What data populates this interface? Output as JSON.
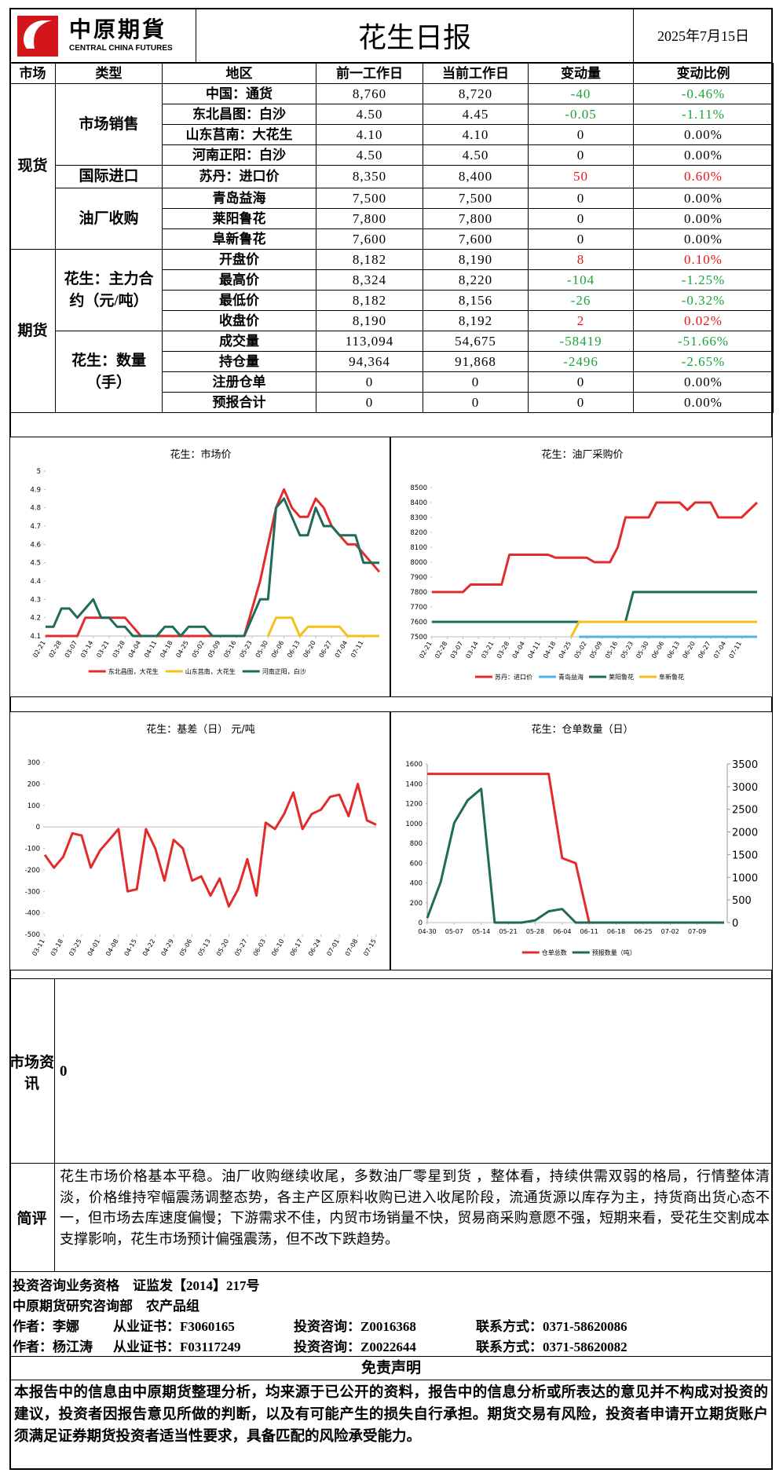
{
  "header": {
    "logo_cn": "中原期貨",
    "logo_en": "CENTRAL CHINA FUTURES",
    "title": "花生日报",
    "date": "2025年7月15日"
  },
  "table": {
    "columns": [
      "市场",
      "类型",
      "地区",
      "前一工作日",
      "当前工作日",
      "变动量",
      "变动比例"
    ],
    "markets": [
      {
        "name": "现货",
        "groups": [
          {
            "name": "市场销售",
            "rows": [
              [
                "中国：通货",
                "8,760",
                "8,720",
                "-40",
                "-0.46%"
              ],
              [
                "东北昌图：白沙",
                "4.50",
                "4.45",
                "-0.05",
                "-1.11%"
              ],
              [
                "山东莒南：大花生",
                "4.10",
                "4.10",
                "0",
                "0.00%"
              ],
              [
                "河南正阳：白沙",
                "4.50",
                "4.50",
                "0",
                "0.00%"
              ]
            ]
          },
          {
            "name": "国际进口",
            "rows": [
              [
                "苏丹：进口价",
                "8,350",
                "8,400",
                "50",
                "0.60%"
              ]
            ]
          },
          {
            "name": "油厂收购",
            "rows": [
              [
                "青岛益海",
                "7,500",
                "7,500",
                "0",
                "0.00%"
              ],
              [
                "莱阳鲁花",
                "7,800",
                "7,800",
                "0",
                "0.00%"
              ],
              [
                "阜新鲁花",
                "7,600",
                "7,600",
                "0",
                "0.00%"
              ]
            ]
          }
        ]
      },
      {
        "name": "期货",
        "groups": [
          {
            "name": "花生：主力合约（元/吨）",
            "rows": [
              [
                "开盘价",
                "8,182",
                "8,190",
                "8",
                "0.10%"
              ],
              [
                "最高价",
                "8,324",
                "8,220",
                "-104",
                "-1.25%"
              ],
              [
                "最低价",
                "8,182",
                "8,156",
                "-26",
                "-0.32%"
              ],
              [
                "收盘价",
                "8,190",
                "8,192",
                "2",
                "0.02%"
              ]
            ]
          },
          {
            "name": "花生：数量（手）",
            "rows": [
              [
                "成交量",
                "113,094",
                "54,675",
                "-58419",
                "-51.66%"
              ],
              [
                "持仓量",
                "94,364",
                "91,868",
                "-2496",
                "-2.65%"
              ],
              [
                "注册仓单",
                "0",
                "0",
                "0",
                "0.00%"
              ],
              [
                "预报合计",
                "0",
                "0",
                "0",
                "0.00%"
              ]
            ]
          }
        ]
      }
    ]
  },
  "chart_data": [
    {
      "type": "line",
      "title": "花生：市场价",
      "grid": false,
      "legend": "bottom",
      "categories": [
        "02-21",
        null,
        "02-28",
        null,
        "03-07",
        null,
        "03-14",
        null,
        "03-21",
        null,
        "03-28",
        null,
        "04-04",
        null,
        "04-11",
        null,
        "04-18",
        null,
        "04-25",
        null,
        "05-02",
        null,
        "05-09",
        null,
        "05-16",
        null,
        "05-23",
        null,
        "05-30",
        null,
        "06-06",
        null,
        "06-13",
        null,
        "06-20",
        null,
        "06-27",
        null,
        "07-04",
        null,
        "07-11",
        null,
        null
      ],
      "ylim": [
        4.1,
        5
      ],
      "yticks": [
        4.1,
        4.2,
        4.3,
        4.4,
        4.5,
        4.6,
        4.7,
        4.8,
        4.9,
        5
      ],
      "series": [
        {
          "name": "东北昌图，大花生",
          "color": "#e32b2b",
          "values": [
            4.1,
            4.1,
            4.1,
            4.1,
            4.1,
            4.2,
            4.2,
            4.2,
            4.2,
            4.2,
            4.2,
            4.15,
            4.1,
            4.1,
            4.1,
            4.1,
            4.1,
            4.1,
            4.1,
            4.1,
            4.1,
            4.1,
            4.1,
            4.1,
            4.1,
            4.1,
            4.25,
            4.4,
            4.6,
            4.8,
            4.9,
            4.8,
            4.75,
            4.75,
            4.85,
            4.8,
            4.7,
            4.65,
            4.6,
            4.6,
            4.55,
            4.5,
            4.45
          ]
        },
        {
          "name": "山东莒南，大花生",
          "color": "#f5c018",
          "values": [
            null,
            null,
            null,
            null,
            null,
            null,
            null,
            null,
            null,
            null,
            null,
            null,
            null,
            null,
            null,
            null,
            null,
            null,
            null,
            null,
            null,
            null,
            null,
            null,
            null,
            null,
            null,
            null,
            4.1,
            4.2,
            4.2,
            4.2,
            4.1,
            4.15,
            4.15,
            4.15,
            4.15,
            4.15,
            4.1,
            4.1,
            4.1,
            4.1,
            4.1
          ]
        },
        {
          "name": "河南正阳，白沙",
          "color": "#1e6b5a",
          "values": [
            4.15,
            4.15,
            4.25,
            4.25,
            4.2,
            4.25,
            4.3,
            4.2,
            4.2,
            4.15,
            4.15,
            4.1,
            4.1,
            4.1,
            4.1,
            4.15,
            4.15,
            4.1,
            4.15,
            4.15,
            4.15,
            4.1,
            4.1,
            4.1,
            4.1,
            4.1,
            4.2,
            4.3,
            4.3,
            4.8,
            4.85,
            4.75,
            4.65,
            4.65,
            4.8,
            4.7,
            4.7,
            4.65,
            4.65,
            4.65,
            4.5,
            4.5,
            4.5
          ]
        }
      ]
    },
    {
      "type": "line",
      "title": "花生：油厂采购价",
      "grid": false,
      "legend": "bottom",
      "categories": [
        "02-21",
        null,
        "02-28",
        null,
        "03-07",
        null,
        "03-14",
        null,
        "03-21",
        null,
        "03-28",
        null,
        "04-04",
        null,
        "04-11",
        null,
        "04-18",
        null,
        "04-25",
        null,
        "05-02",
        null,
        "05-09",
        null,
        "05-16",
        null,
        "05-23",
        null,
        "05-30",
        null,
        "06-06",
        null,
        "06-13",
        null,
        "06-20",
        null,
        "06-27",
        null,
        "07-04",
        null,
        "07-11",
        null,
        null
      ],
      "ylim": [
        7500,
        8500
      ],
      "yticks": [
        7500,
        7600,
        7700,
        7800,
        7900,
        8000,
        8100,
        8200,
        8300,
        8400,
        8500
      ],
      "series": [
        {
          "name": "苏丹：进口价",
          "color": "#e32b2b",
          "values": [
            7800,
            7800,
            7800,
            7800,
            7800,
            7850,
            7850,
            7850,
            7850,
            7850,
            8050,
            8050,
            8050,
            8050,
            8050,
            8050,
            8030,
            8030,
            8030,
            8030,
            8030,
            8000,
            8000,
            8000,
            8100,
            8300,
            8300,
            8300,
            8300,
            8400,
            8400,
            8400,
            8400,
            8350,
            8400,
            8400,
            8400,
            8300,
            8300,
            8300,
            8300,
            8350,
            8400
          ]
        },
        {
          "name": "青岛益海",
          "color": "#4fb3e8",
          "values": [
            null,
            null,
            null,
            null,
            null,
            null,
            null,
            null,
            null,
            null,
            null,
            null,
            null,
            null,
            null,
            null,
            null,
            null,
            null,
            7500,
            7500,
            7500,
            7500,
            7500,
            7500,
            7500,
            7500,
            7500,
            7500,
            7500,
            7500,
            7500,
            7500,
            7500,
            7500,
            7500,
            7500,
            7500,
            7500,
            7500,
            7500,
            7500,
            7500
          ]
        },
        {
          "name": "莱阳鲁花",
          "color": "#1e6b5a",
          "values": [
            7600,
            7600,
            7600,
            7600,
            7600,
            7600,
            7600,
            7600,
            7600,
            7600,
            7600,
            7600,
            7600,
            7600,
            7600,
            7600,
            7600,
            7600,
            7600,
            7600,
            7600,
            7600,
            7600,
            7600,
            7600,
            7600,
            7800,
            7800,
            7800,
            7800,
            7800,
            7800,
            7800,
            7800,
            7800,
            7800,
            7800,
            7800,
            7800,
            7800,
            7800,
            7800,
            7800
          ]
        },
        {
          "name": "阜新鲁花",
          "color": "#f5c018",
          "values": [
            null,
            null,
            null,
            null,
            null,
            null,
            null,
            null,
            null,
            null,
            null,
            null,
            null,
            null,
            null,
            null,
            null,
            null,
            7500,
            7600,
            7600,
            7600,
            7600,
            7600,
            7600,
            7600,
            7600,
            7600,
            7600,
            7600,
            7600,
            7600,
            7600,
            7600,
            7600,
            7600,
            7600,
            7600,
            7600,
            7600,
            7600,
            7600,
            7600
          ]
        }
      ]
    },
    {
      "type": "line",
      "title": "花生：基差（日） 元/吨",
      "grid": false,
      "categories": [
        "03-11",
        null,
        "03-18",
        null,
        "03-25",
        null,
        "04-01",
        null,
        "04-08",
        null,
        "04-15",
        null,
        "04-22",
        null,
        "04-29",
        null,
        "05-06",
        null,
        "05-13",
        null,
        "05-20",
        null,
        "05-27",
        null,
        "06-03",
        null,
        "06-10",
        null,
        "06-17",
        null,
        "06-24",
        null,
        "07-01",
        null,
        "07-08",
        null,
        "07-15"
      ],
      "ylim": [
        -500,
        300
      ],
      "yticks": [
        -500,
        -400,
        -300,
        -200,
        -100,
        0,
        100,
        200,
        300
      ],
      "series": [
        {
          "color": "#e32b2b",
          "values": [
            -130,
            -190,
            -140,
            -30,
            -40,
            -190,
            -110,
            -60,
            -10,
            -300,
            -290,
            -10,
            -100,
            -250,
            -60,
            -100,
            -250,
            -230,
            -320,
            -240,
            -370,
            -290,
            -150,
            -320,
            20,
            -10,
            60,
            160,
            -10,
            60,
            80,
            140,
            150,
            50,
            200,
            30,
            10
          ]
        }
      ]
    },
    {
      "type": "line",
      "title": "花生：仓单数量（日）",
      "grid": false,
      "legend": "bottom",
      "categories": [
        "04-30",
        null,
        "05-07",
        null,
        "05-14",
        null,
        "05-21",
        null,
        "05-28",
        null,
        "06-04",
        null,
        "06-11",
        null,
        "06-18",
        null,
        "06-25",
        null,
        "07-02",
        null,
        "07-09",
        null,
        null
      ],
      "ylim": [
        0,
        1600
      ],
      "yticks": [
        0,
        200,
        400,
        600,
        800,
        1000,
        1200,
        1400,
        1600
      ],
      "y2lim": [
        0,
        3500
      ],
      "y2ticks": [
        0,
        500,
        1000,
        1500,
        2000,
        2500,
        3000,
        3500
      ],
      "series": [
        {
          "name": "仓单总数",
          "color": "#e32b2b",
          "values": [
            1500,
            1500,
            1500,
            1500,
            1500,
            1500,
            1500,
            1500,
            1500,
            1500,
            650,
            600,
            0,
            null,
            null,
            null,
            null,
            null,
            null,
            null,
            null,
            null,
            null
          ]
        },
        {
          "name": "预报数量（吨）",
          "color": "#1e6b5a",
          "axis": "y2",
          "values": [
            100,
            900,
            2200,
            2700,
            2950,
            0,
            0,
            0,
            50,
            250,
            300,
            0,
            0,
            0,
            0,
            0,
            0,
            0,
            0,
            0,
            0,
            0,
            0
          ]
        }
      ]
    }
  ],
  "market_info": {
    "label": "市场资讯",
    "content": "0"
  },
  "comment": {
    "label": "简评",
    "content": "花生市场价格基本平稳。油厂收购继续收尾，多数油厂零星到货 ，整体看，持续供需双弱的格局，行情整体清淡，价格维持窄幅震荡调整态势，各主产区原料收购已进入收尾阶段，流通货源以库存为主，持货商出货心态不一，但市场去库速度偏慢；下游需求不佳，内贸市场销量不快，贸易商采购意愿不强，短期来看，受花生交割成本支撑影响，花生市场预计偏强震荡，但不改下跌趋势。"
  },
  "credentials": {
    "qualification": "投资咨询业务资格　证监发【2014】217号",
    "department": "中原期货研究咨询部　农产品组",
    "authors": [
      [
        "作者：李娜",
        "从业证书：F3060165",
        "投资咨询：Z0016368",
        "联系方式：0371-58620086"
      ],
      [
        "作者：杨江涛",
        "从业证书：F03117249",
        "投资咨询：Z0022644",
        "联系方式：0371-58620082"
      ]
    ]
  },
  "disclaimer": {
    "title": "免责声明",
    "text": "本报告中的信息由中原期货整理分析，均来源于已公开的资料，报告中的信息分析或所表达的意见并不构成对投资的建议，投资者因报告意见所做的判断，以及有可能产生的损失自行承担。期货交易有风险，投资者申请开立期货账户须满足证券期货投资者适当性要求，具备匹配的风险承受能力。"
  }
}
